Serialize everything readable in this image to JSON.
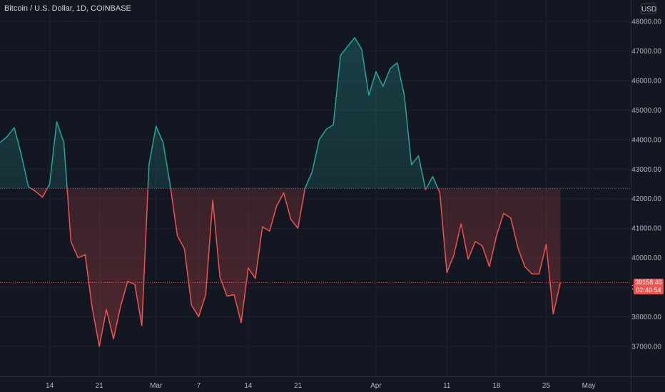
{
  "header": {
    "title": "Bitcoin / U.S. Dollar, 1D, COINBASE",
    "currency": "USD"
  },
  "last_price": {
    "value": "39158.46",
    "countdown": "02:40:54"
  },
  "colors": {
    "background": "#131722",
    "grid": "#1e222d",
    "up": "#26a69a",
    "down": "#ef5350",
    "axis_text": "#b2b5be"
  },
  "chart_data": {
    "type": "area",
    "style": "baseline",
    "title": "Bitcoin / U.S. Dollar, 1D, COINBASE",
    "baseline": 42350,
    "last_value": 39158.46,
    "ylim": [
      36000,
      48500
    ],
    "y_ticks": [
      "48000.00",
      "47000.00",
      "46000.00",
      "45000.00",
      "44000.00",
      "43000.00",
      "42000.00",
      "41000.00",
      "40000.00",
      "39000.00",
      "38000.00",
      "37000.00"
    ],
    "y_tick_values": [
      48000,
      47000,
      46000,
      45000,
      44000,
      43000,
      42000,
      41000,
      40000,
      39000,
      38000,
      37000
    ],
    "x_start": "2022-02-07",
    "x_end": "2022-05-03",
    "x_ticks": [
      {
        "label": "14",
        "date": "2022-02-14"
      },
      {
        "label": "21",
        "date": "2022-02-21"
      },
      {
        "label": "Mar",
        "date": "2022-03-01"
      },
      {
        "label": "7",
        "date": "2022-03-07"
      },
      {
        "label": "14",
        "date": "2022-03-14"
      },
      {
        "label": "21",
        "date": "2022-03-21"
      },
      {
        "label": "Apr",
        "date": "2022-04-01"
      },
      {
        "label": "11",
        "date": "2022-04-11"
      },
      {
        "label": "18",
        "date": "2022-04-18"
      },
      {
        "label": "25",
        "date": "2022-04-25"
      },
      {
        "label": "May",
        "date": "2022-05-01"
      }
    ],
    "x": [
      "2022-02-07",
      "2022-02-08",
      "2022-02-09",
      "2022-02-10",
      "2022-02-11",
      "2022-02-12",
      "2022-02-13",
      "2022-02-14",
      "2022-02-15",
      "2022-02-16",
      "2022-02-17",
      "2022-02-18",
      "2022-02-19",
      "2022-02-20",
      "2022-02-21",
      "2022-02-22",
      "2022-02-23",
      "2022-02-24",
      "2022-02-25",
      "2022-02-26",
      "2022-02-27",
      "2022-02-28",
      "2022-03-01",
      "2022-03-02",
      "2022-03-03",
      "2022-03-04",
      "2022-03-05",
      "2022-03-06",
      "2022-03-07",
      "2022-03-08",
      "2022-03-09",
      "2022-03-10",
      "2022-03-11",
      "2022-03-12",
      "2022-03-13",
      "2022-03-14",
      "2022-03-15",
      "2022-03-16",
      "2022-03-17",
      "2022-03-18",
      "2022-03-19",
      "2022-03-20",
      "2022-03-21",
      "2022-03-22",
      "2022-03-23",
      "2022-03-24",
      "2022-03-25",
      "2022-03-26",
      "2022-03-27",
      "2022-03-28",
      "2022-03-29",
      "2022-03-30",
      "2022-03-31",
      "2022-04-01",
      "2022-04-02",
      "2022-04-03",
      "2022-04-04",
      "2022-04-05",
      "2022-04-06",
      "2022-04-07",
      "2022-04-08",
      "2022-04-09",
      "2022-04-10",
      "2022-04-11",
      "2022-04-12",
      "2022-04-13",
      "2022-04-14",
      "2022-04-15",
      "2022-04-16",
      "2022-04-17",
      "2022-04-18",
      "2022-04-19",
      "2022-04-20",
      "2022-04-21",
      "2022-04-22",
      "2022-04-23",
      "2022-04-24",
      "2022-04-25",
      "2022-04-26",
      "2022-04-27"
    ],
    "y": [
      43900,
      44100,
      44400,
      43500,
      42400,
      42250,
      42050,
      42500,
      44600,
      43900,
      40550,
      40000,
      40100,
      38300,
      37000,
      38250,
      37250,
      38350,
      39200,
      39100,
      37700,
      43150,
      44450,
      43900,
      42450,
      40750,
      40300,
      38400,
      38000,
      38750,
      41950,
      39350,
      38700,
      38750,
      37800,
      39650,
      39300,
      41050,
      40900,
      41750,
      42200,
      41300,
      41000,
      42350,
      42900,
      44000,
      44350,
      44500,
      46850,
      47150,
      47450,
      47050,
      45500,
      46300,
      45800,
      46400,
      46600,
      45500,
      43150,
      43450,
      42300,
      42750,
      42200,
      39500,
      40100,
      41150,
      39950,
      40550,
      40400,
      39700,
      40750,
      41500,
      41350,
      40350,
      39700,
      39450,
      39450,
      40450,
      38100,
      39158.46
    ],
    "xlabel": "",
    "ylabel": "",
    "grid": true,
    "price_line": true
  }
}
